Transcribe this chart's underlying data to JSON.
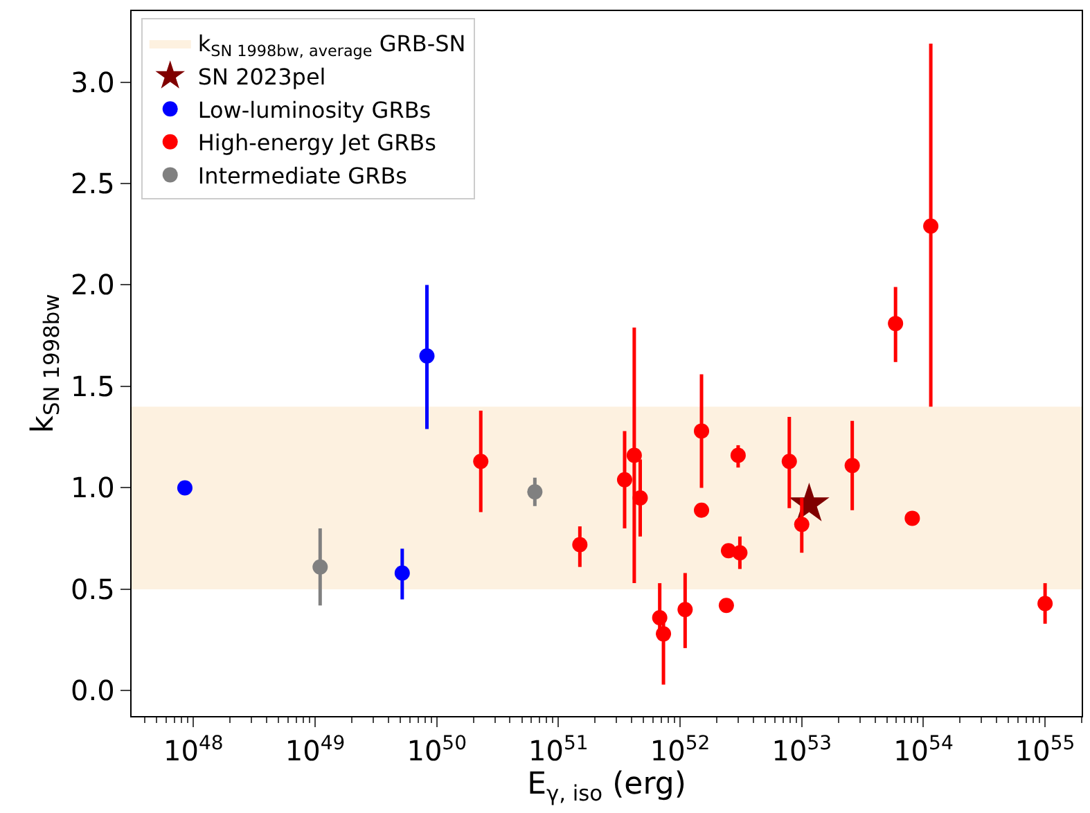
{
  "chart_data": {
    "type": "scatter",
    "xlabel": "E$_{γ, iso}$ (erg)",
    "ylabel": "k$_{SN 1998bw}$",
    "log": "x",
    "grid": false,
    "legend": "top left",
    "marker": "circle",
    "xlim": [
      3.1e+47,
      2e+55
    ],
    "xticks": [
      {
        "value": 1e+48,
        "label": "10$^{48}$"
      },
      {
        "value": 1e+49,
        "label": "10$^{49}$"
      },
      {
        "value": 1e+50,
        "label": "10$^{50}$"
      },
      {
        "value": 1e+51,
        "label": "10$^{51}$"
      },
      {
        "value": 1e+52,
        "label": "10$^{52}$"
      },
      {
        "value": 1e+53,
        "label": "10$^{53}$"
      },
      {
        "value": 1e+54,
        "label": "10$^{54}$"
      },
      {
        "value": 1e+55,
        "label": "10$^{55}$"
      }
    ],
    "ylim": [
      -0.125,
      3.35
    ],
    "yticks": [
      {
        "value": 0,
        "label": "0.0"
      },
      0.5,
      {
        "value": 1,
        "label": "1.0"
      },
      1.5,
      {
        "value": 2,
        "label": "2.0"
      },
      2.5,
      {
        "value": 3,
        "label": "3.0"
      }
    ],
    "bands": [
      {
        "axis": "y",
        "from": 0.5,
        "to": 1.4,
        "label": "k$_{SN 1998bw, average}$ GRB-SN",
        "color": "#fdf1e0"
      }
    ],
    "series": [
      {
        "name": "SN 2023pel",
        "color": "#800000",
        "marker": "star",
        "x": [
          1.15e+53
        ],
        "values": [
          0.92
        ]
      },
      {
        "name": "Low-luminosity GRBs",
        "color": "#0000ff",
        "x": [
          8.5e+47,
          5.2e+49,
          8.3e+49
        ],
        "values": [
          1.0,
          0.58,
          1.65
        ],
        "errors": [
          null,
          [
            0.45,
            0.7
          ],
          [
            1.29,
            2.0
          ]
        ]
      },
      {
        "name": "High-energy Jet GRBs",
        "color": "#ff0000",
        "x": [
          2.3e+50,
          1.5e+51,
          3.5e+51,
          4.2e+51,
          4.7e+51,
          6.8e+51,
          7.3e+51,
          1.1e+52,
          1.5e+52,
          1.5e+52,
          2.4e+52,
          2.5e+52,
          3.1e+52,
          3e+52,
          7.9e+52,
          1e+53,
          2.6e+53,
          5.9e+53,
          1.15e+54,
          8.1e+53,
          1e+55
        ],
        "values": [
          1.13,
          0.72,
          1.04,
          1.16,
          0.95,
          0.36,
          0.28,
          0.4,
          1.28,
          0.89,
          0.42,
          0.69,
          0.68,
          1.16,
          1.13,
          0.82,
          1.11,
          1.81,
          2.29,
          0.85,
          0.43
        ],
        "errors": [
          [
            0.88,
            1.38
          ],
          [
            0.61,
            0.81
          ],
          [
            0.8,
            1.28
          ],
          [
            0.53,
            1.79
          ],
          [
            0.76,
            1.14
          ],
          [
            0.28,
            0.53
          ],
          [
            0.03,
            0.36
          ],
          [
            0.21,
            0.58
          ],
          [
            1.0,
            1.56
          ],
          null,
          null,
          null,
          [
            0.6,
            0.76
          ],
          [
            1.1,
            1.21
          ],
          [
            0.9,
            1.35
          ],
          [
            0.68,
            0.95
          ],
          [
            0.89,
            1.33
          ],
          [
            1.62,
            1.99
          ],
          [
            1.4,
            3.19
          ],
          null,
          [
            0.33,
            0.53
          ]
        ]
      },
      {
        "name": "Intermediate GRBs",
        "color": "#808080",
        "x": [
          1.1e+49,
          6.4e+50
        ],
        "values": [
          0.61,
          0.98
        ],
        "errors": [
          [
            0.42,
            0.8
          ],
          [
            0.91,
            1.05
          ]
        ]
      }
    ]
  }
}
